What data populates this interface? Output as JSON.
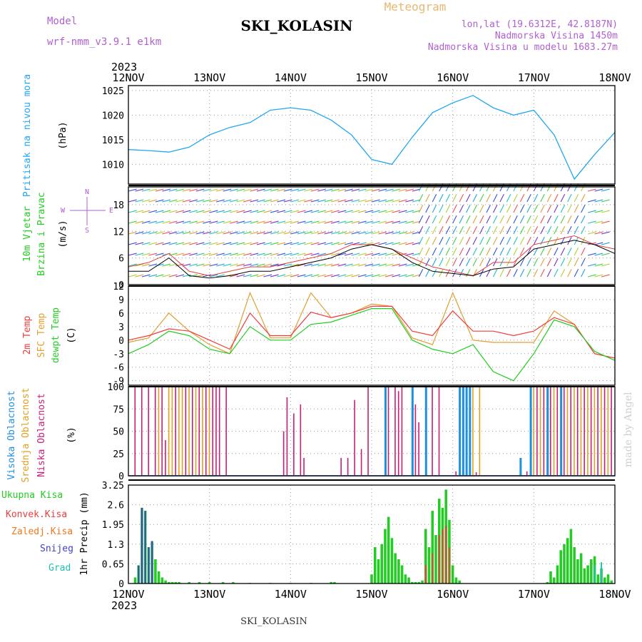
{
  "header": {
    "model_label": "Model",
    "model_name": "wrf-nmm_v3.9.1 e1km",
    "station": "SKI_KOLASIN",
    "product": "Meteogram",
    "coords": "lon,lat (19.6312E, 42.8187N)",
    "elevation": "Nadmorska Visina 1450m",
    "model_elevation": "Nadmorska Visina u modelu 1683.27m",
    "year": "2023",
    "footer_station": "SKI_KOLASIN",
    "credit": "made by Angel"
  },
  "colors": {
    "pressure": "#22a7f0",
    "temp2m": "#f03c3c",
    "sfc": "#e0a030",
    "dewpt": "#22cc22",
    "high_cloud": "#1e90e0",
    "mid_cloud": "#e0a020",
    "low_cloud": "#c81e78",
    "total_precip": "#22cc22",
    "conv_precip": "#f03c3c",
    "frz_precip": "#f07820",
    "snow": "#4040d0",
    "hail": "#20c0b0"
  },
  "chart_data": [
    {
      "type": "line",
      "panel": "pressure",
      "ylabel_1": "Pritisak na nivou mora",
      "ylabel_2": "(hPa)",
      "ylim": [
        1006,
        1026
      ],
      "yticks": [
        "1010",
        "1015",
        "1020",
        "1025"
      ],
      "x_hours": [
        0,
        6,
        12,
        18,
        24,
        30,
        36,
        42,
        48,
        54,
        60,
        66,
        72,
        78,
        84,
        90,
        96,
        102,
        108,
        114,
        120,
        126,
        132,
        138,
        144
      ],
      "series": [
        {
          "values": [
            1013,
            1012.8,
            1012.5,
            1013.5,
            1016,
            1017.5,
            1018.5,
            1021,
            1021.5,
            1021,
            1019,
            1016,
            1011,
            1010,
            1015.5,
            1020.5,
            1022.5,
            1024,
            1021.5,
            1020,
            1021,
            1016,
            1007,
            1012,
            1016.5
          ]
        }
      ]
    },
    {
      "type": "line",
      "panel": "wind",
      "ylabel_1": "10m Vjetar",
      "ylabel_2": "Brzina i Pravac",
      "ylabel_3": "(m/s)",
      "compass": {
        "n": "N",
        "s": "S",
        "e": "E",
        "w": "W"
      },
      "ylim": [
        0,
        22
      ],
      "yticks": [
        "0",
        "6",
        "12",
        "18"
      ],
      "x_hours": [
        0,
        6,
        12,
        18,
        24,
        30,
        36,
        42,
        48,
        54,
        60,
        66,
        72,
        78,
        84,
        90,
        96,
        102,
        108,
        114,
        120,
        126,
        132,
        138,
        144
      ],
      "series": [
        {
          "values": [
            4,
            5,
            7,
            3,
            2,
            3,
            4,
            4,
            5,
            6,
            7,
            9,
            9,
            8,
            6,
            4,
            3,
            2,
            5,
            5,
            9,
            10,
            11,
            9,
            8
          ]
        },
        {
          "values": [
            3,
            3,
            6,
            2,
            1.5,
            2,
            3,
            3,
            4,
            5,
            6,
            8,
            9,
            8,
            5,
            3,
            2.5,
            2,
            3.5,
            4,
            8,
            9,
            10,
            9,
            7
          ]
        }
      ]
    },
    {
      "type": "line",
      "panel": "temperature",
      "ylabel_1": "2m Temp",
      "ylabel_2": "SFC Temp",
      "ylabel_3": "dewpt Temp",
      "ylabel_4": "(C)",
      "ylim": [
        -10,
        12
      ],
      "yticks": [
        "-9",
        "-6",
        "-3",
        "0",
        "3",
        "6",
        "9",
        "12"
      ],
      "x_hours": [
        0,
        6,
        12,
        18,
        24,
        30,
        36,
        42,
        48,
        54,
        60,
        66,
        72,
        78,
        84,
        90,
        96,
        102,
        108,
        114,
        120,
        126,
        132,
        138,
        144
      ],
      "series": [
        {
          "name": "2m Temp",
          "values": [
            0,
            1,
            2.5,
            2,
            0,
            -2,
            6,
            1,
            1,
            6.2,
            5,
            6,
            7.5,
            7.5,
            2,
            1,
            6.5,
            2,
            2,
            1,
            2,
            5,
            3.5,
            -3,
            -4
          ]
        },
        {
          "name": "SFC Temp",
          "values": [
            -0.5,
            0.5,
            6,
            2,
            -1,
            -3,
            10.5,
            0.5,
            0.5,
            10.5,
            5,
            6,
            8,
            7.5,
            0.5,
            -1,
            10.5,
            0,
            -0.5,
            -0.5,
            -0.5,
            6.5,
            3.5,
            -3,
            -4
          ]
        },
        {
          "name": "dewpt Temp",
          "values": [
            -3,
            -1,
            2,
            1,
            -2,
            -3,
            3,
            0,
            0,
            3.5,
            4,
            5.5,
            7,
            7,
            0,
            -2,
            -3,
            -1,
            -7,
            -9,
            -3,
            4.5,
            3,
            -2.5,
            -4.5
          ]
        }
      ]
    },
    {
      "type": "bar",
      "panel": "clouds",
      "ylabel_1": "Visoka Oblacnost",
      "ylabel_2": "Srednja Oblacnost",
      "ylabel_3": "Niska Oblacnost",
      "ylabel_4": "(%)",
      "ylim": [
        0,
        100
      ],
      "yticks": [
        "0",
        "25",
        "50",
        "75",
        "100"
      ],
      "series": [
        {
          "name": "Niska Oblacnost",
          "x_hours": [
            2,
            4,
            6,
            8,
            10,
            11,
            14,
            17,
            19,
            21,
            23,
            25,
            26,
            27,
            29,
            46,
            47,
            49,
            51,
            52,
            63,
            65,
            67,
            69,
            71,
            77,
            79,
            80,
            81,
            85,
            86,
            90,
            92,
            97,
            103,
            118,
            121,
            123,
            125,
            127,
            129,
            131,
            133,
            135,
            137,
            139,
            141,
            143
          ],
          "values": [
            100,
            100,
            100,
            100,
            100,
            40,
            100,
            100,
            100,
            100,
            100,
            100,
            100,
            100,
            100,
            50,
            88,
            70,
            80,
            20,
            20,
            20,
            85,
            30,
            100,
            100,
            100,
            95,
            100,
            80,
            60,
            100,
            100,
            5,
            4,
            5,
            100,
            100,
            100,
            100,
            100,
            100,
            100,
            100,
            100,
            100,
            100,
            100
          ]
        },
        {
          "name": "Srednja Oblacnost",
          "x_hours": [
            9,
            12,
            13,
            15,
            16,
            18,
            20,
            22,
            24,
            102,
            104,
            120,
            122,
            124,
            126,
            128,
            130,
            132,
            134,
            136,
            138,
            140,
            142
          ],
          "values": [
            100,
            100,
            100,
            100,
            100,
            100,
            100,
            100,
            100,
            100,
            100,
            100,
            100,
            100,
            100,
            100,
            100,
            100,
            100,
            100,
            100,
            100,
            100
          ]
        },
        {
          "name": "Visoka Oblacnost",
          "x_hours": [
            76,
            84,
            88,
            98,
            99,
            100,
            101,
            116,
            119,
            124,
            128
          ],
          "values": [
            100,
            100,
            100,
            100,
            100,
            100,
            100,
            20,
            100,
            100,
            100
          ]
        }
      ]
    },
    {
      "type": "bar",
      "panel": "precip",
      "ylabel_1": "1hr Precip (mm)",
      "ylim": [
        0,
        3.25
      ],
      "yticks": [
        "0",
        "0.65",
        "1.3",
        "1.95",
        "2.6",
        "3.25"
      ],
      "x_labels": [
        "12NOV",
        "13NOV",
        "14NOV",
        "15NOV",
        "16NOV",
        "17NOV",
        "18NOV"
      ],
      "series": [
        {
          "name": "Ukupna Kisa",
          "x_hours": [
            2,
            3,
            4,
            5,
            6,
            7,
            8,
            9,
            10,
            11,
            12,
            13,
            14,
            15,
            18,
            21,
            24,
            28,
            31,
            36,
            42,
            48,
            54,
            60,
            61,
            72,
            73,
            74,
            75,
            76,
            77,
            78,
            79,
            80,
            81,
            82,
            83,
            84,
            85,
            86,
            87,
            88,
            89,
            90,
            91,
            92,
            93,
            94,
            95,
            96,
            97,
            98,
            124,
            125,
            126,
            127,
            128,
            129,
            130,
            131,
            132,
            133,
            134,
            135,
            136,
            137,
            138,
            139,
            140,
            141,
            142,
            143
          ],
          "values": [
            0.2,
            0.6,
            2.5,
            2.4,
            1.2,
            1.4,
            0.8,
            0.4,
            0.2,
            0.1,
            0.05,
            0.05,
            0.05,
            0.05,
            0.05,
            0.05,
            0.05,
            0.05,
            0.05,
            0.02,
            0.02,
            0.02,
            0.02,
            0.05,
            0.05,
            0.3,
            1.2,
            0.8,
            1.3,
            1.8,
            2.2,
            1.5,
            1.0,
            0.8,
            0.6,
            0.3,
            0.2,
            0.05,
            0.05,
            0.05,
            0.1,
            1.8,
            1.2,
            2.4,
            1.6,
            2.8,
            2.5,
            3.1,
            2.1,
            0.6,
            0.2,
            0.1,
            0.05,
            0.4,
            0.2,
            0.6,
            1.1,
            1.3,
            1.5,
            1.8,
            1.2,
            0.8,
            1.0,
            0.5,
            0.6,
            0.8,
            0.9,
            0.3,
            0.5,
            0.2,
            0.3,
            0.1
          ]
        },
        {
          "name": "Konvek.Kisa",
          "x_hours": [
            88,
            90,
            92,
            93,
            94,
            95
          ],
          "values": [
            0.6,
            1.0,
            1.6,
            1.8,
            1.9,
            1.2
          ]
        },
        {
          "name": "Zaledj.Kisa",
          "x_hours": [],
          "values": []
        },
        {
          "name": "Snijeg",
          "x_hours": [
            3,
            4,
            5,
            6,
            7
          ],
          "values": [
            0.6,
            2.5,
            2.4,
            1.2,
            1.4
          ]
        },
        {
          "name": "Grad",
          "x_hours": [
            138,
            140
          ],
          "values": [
            0.6,
            0.7
          ]
        }
      ]
    }
  ]
}
